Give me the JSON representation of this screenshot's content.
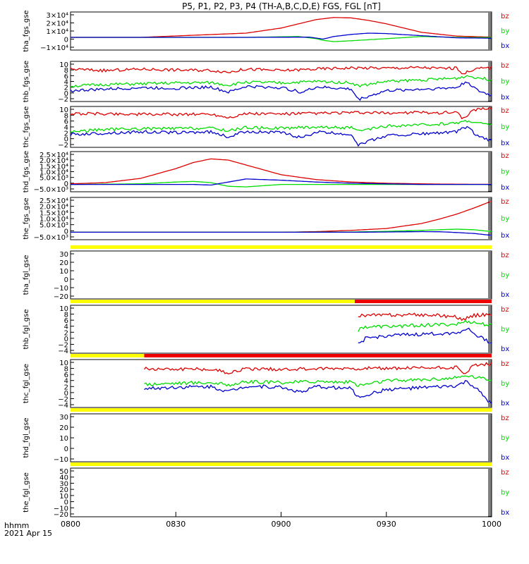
{
  "title": "P5, P1, P2, P3, P4 (TH-A,B,C,D,E) FGS, FGL [nT]",
  "x_axis": {
    "unit_label": "hhmm",
    "date_label": "2021 Apr 15",
    "ticks": [
      "0800",
      "0830",
      "0900",
      "0930",
      "1000"
    ],
    "range_minutes": [
      0,
      120
    ]
  },
  "colors": {
    "bz": "#dd0000",
    "by": "#00dd00",
    "bx": "#0000cc",
    "bar_yellow": "#ffff00",
    "bar_red": "#ee0000"
  },
  "chart_data": [
    {
      "type": "line",
      "ylabel": "tha_fgs_gse",
      "yticks": [
        "3×10⁴",
        "2×10⁴",
        "1×10⁴",
        "0",
        "−1×10⁴"
      ],
      "ylim": [
        -15000,
        30000
      ],
      "legend": [
        "bz",
        "by",
        "bx"
      ],
      "series": [
        {
          "name": "bz",
          "x": [
            0,
            20,
            50,
            60,
            65,
            70,
            75,
            80,
            85,
            90,
            95,
            100,
            110,
            120
          ],
          "y": [
            0,
            0,
            5000,
            11000,
            16000,
            21000,
            23500,
            23000,
            20000,
            16000,
            11000,
            6000,
            1500,
            300
          ]
        },
        {
          "name": "by",
          "x": [
            0,
            50,
            65,
            70,
            72,
            75,
            80,
            90,
            100,
            110,
            120
          ],
          "y": [
            0,
            0,
            1000,
            -1500,
            -3500,
            -5000,
            -4000,
            -1500,
            1000,
            0,
            -200
          ]
        },
        {
          "name": "bx",
          "x": [
            0,
            50,
            68,
            72,
            75,
            80,
            85,
            90,
            100,
            110,
            120
          ],
          "y": [
            0,
            0,
            300,
            -2000,
            1000,
            3500,
            5000,
            4500,
            2000,
            -500,
            -1000
          ]
        }
      ]
    },
    {
      "type": "line",
      "ylabel": "thb_fgs_gse",
      "yticks": [
        "10",
        "8",
        "6",
        "4",
        "2",
        "0",
        "−2"
      ],
      "ylim": [
        -2.5,
        10.5
      ],
      "legend": [
        "bz",
        "by",
        "bx"
      ],
      "series": [
        {
          "name": "bz",
          "x": [
            0,
            10,
            20,
            30,
            40,
            45,
            50,
            60,
            70,
            80,
            90,
            100,
            105,
            110,
            112,
            115,
            120
          ],
          "y": [
            8,
            7.5,
            8,
            7.7,
            7.6,
            7,
            8,
            7.5,
            8,
            8.4,
            8.3,
            8.5,
            8.2,
            8.3,
            6.5,
            8,
            8.5
          ]
        },
        {
          "name": "by",
          "x": [
            0,
            10,
            20,
            30,
            40,
            45,
            50,
            60,
            70,
            80,
            82,
            90,
            100,
            110,
            113,
            120
          ],
          "y": [
            2.5,
            3,
            3.2,
            3.5,
            3.6,
            2.8,
            3.8,
            3.5,
            4,
            3.6,
            2.5,
            4,
            4.5,
            5,
            5.8,
            4.5
          ]
        },
        {
          "name": "by_unused",
          "x": [],
          "y": []
        },
        {
          "name": "bx",
          "x": [
            0,
            10,
            20,
            30,
            40,
            45,
            50,
            60,
            66,
            70,
            80,
            82,
            90,
            100,
            110,
            113,
            116,
            120
          ],
          "y": [
            1,
            1.5,
            2,
            1.8,
            2.2,
            0.5,
            2.4,
            2,
            0.5,
            2.2,
            1.5,
            -1.8,
            1,
            1.5,
            2,
            4,
            1,
            -0.5
          ]
        }
      ]
    },
    {
      "type": "line",
      "ylabel": "thc_fgs_gse",
      "yticks": [
        "10",
        "8",
        "6",
        "4",
        "2",
        "0",
        "−2"
      ],
      "ylim": [
        -2.5,
        10.5
      ],
      "legend": [
        "bz",
        "by",
        "bx"
      ],
      "series": [
        {
          "name": "bz",
          "x": [
            0,
            10,
            20,
            30,
            40,
            45,
            50,
            60,
            70,
            80,
            90,
            100,
            105,
            110,
            112,
            115,
            120
          ],
          "y": [
            8.2,
            8.2,
            8,
            8,
            8.1,
            7,
            8.2,
            8.1,
            8.3,
            8.5,
            8.4,
            8.6,
            8.5,
            8.8,
            6.5,
            9.5,
            10
          ]
        },
        {
          "name": "by",
          "x": [
            0,
            10,
            20,
            30,
            40,
            45,
            50,
            60,
            70,
            80,
            82,
            90,
            100,
            110,
            113,
            120
          ],
          "y": [
            2.5,
            3.2,
            3.4,
            3.5,
            3.6,
            2.8,
            3.8,
            3.6,
            4,
            3.7,
            2.6,
            4.2,
            4.6,
            5.2,
            6,
            4.5
          ]
        },
        {
          "name": "bx_placeholder",
          "x": [],
          "y": []
        },
        {
          "name": "bx",
          "x": [
            0,
            10,
            20,
            30,
            40,
            45,
            50,
            60,
            66,
            70,
            80,
            82,
            90,
            100,
            110,
            113,
            116,
            120
          ],
          "y": [
            1.6,
            2,
            2.4,
            2.2,
            2.4,
            0.8,
            2.6,
            2.2,
            0.5,
            2.4,
            1.6,
            -1.6,
            1.2,
            1.8,
            2.4,
            4.2,
            1,
            -0.5
          ]
        }
      ]
    },
    {
      "type": "line",
      "ylabel": "thd_fgs_gse",
      "yticks": [
        "2.5×10⁴",
        "2.0×10⁴",
        "1.5×10⁴",
        "1.0×10⁴",
        "5.0×10³",
        "0",
        "−5.0×10³"
      ],
      "ylim": [
        -6000,
        27000
      ],
      "legend": [
        "bz",
        "by",
        "bx"
      ],
      "series": [
        {
          "name": "bz",
          "x": [
            0,
            10,
            20,
            30,
            35,
            40,
            45,
            50,
            55,
            60,
            70,
            80,
            90,
            100,
            110,
            120
          ],
          "y": [
            500,
            1500,
            5000,
            13000,
            18000,
            21000,
            20000,
            16000,
            12000,
            8000,
            4000,
            2000,
            1000,
            500,
            200,
            100
          ]
        },
        {
          "name": "by",
          "x": [
            0,
            20,
            30,
            35,
            40,
            45,
            50,
            55,
            60,
            70,
            80,
            90,
            100,
            110,
            120
          ],
          "y": [
            0,
            500,
            2000,
            2500,
            1500,
            -1500,
            -2000,
            -1000,
            0,
            0,
            0,
            0,
            0,
            0,
            0
          ]
        },
        {
          "name": "bx_placeholder",
          "x": [],
          "y": []
        },
        {
          "name": "bx",
          "x": [
            0,
            20,
            30,
            35,
            40,
            45,
            50,
            55,
            60,
            70,
            80,
            90,
            100,
            110,
            120
          ],
          "y": [
            0,
            0,
            0,
            0,
            -500,
            2000,
            4500,
            4000,
            3500,
            2000,
            1000,
            500,
            0,
            0,
            0
          ]
        }
      ]
    },
    {
      "type": "line",
      "ylabel": "the_fgs_gse",
      "yticks": [
        "2.5×10⁴",
        "2.0×10⁴",
        "1.5×10⁴",
        "1.0×10⁴",
        "5.0×10³",
        "0",
        "−5.0×10³"
      ],
      "ylim": [
        -6000,
        28000
      ],
      "legend": [
        "bz",
        "by",
        "bx"
      ],
      "series": [
        {
          "name": "bz",
          "x": [
            0,
            20,
            40,
            60,
            70,
            80,
            90,
            95,
            100,
            105,
            110,
            115,
            120
          ],
          "y": [
            0,
            0,
            0,
            0,
            500,
            1500,
            3000,
            5000,
            7000,
            10500,
            14500,
            19500,
            25000
          ]
        },
        {
          "name": "by",
          "x": [
            0,
            60,
            80,
            90,
            100,
            105,
            110,
            115,
            120
          ],
          "y": [
            0,
            0,
            200,
            700,
            1500,
            2000,
            2500,
            2000,
            500
          ]
        },
        {
          "name": "bx_placeholder",
          "x": [],
          "y": []
        },
        {
          "name": "bx",
          "x": [
            0,
            60,
            80,
            90,
            100,
            105,
            110,
            115,
            120
          ],
          "y": [
            0,
            0,
            0,
            200,
            500,
            400,
            -200,
            -1000,
            -2500
          ]
        }
      ]
    },
    {
      "type": "line",
      "ylabel": "tha_fgl_gse",
      "yticks": [
        "30",
        "20",
        "10",
        "0",
        "−10",
        "−20"
      ],
      "ylim": [
        -25,
        35
      ],
      "legend": [
        "bz",
        "by",
        "bx"
      ],
      "bar_segments": [
        {
          "color": "bar_yellow",
          "from": 0,
          "to": 120
        }
      ],
      "series": []
    },
    {
      "type": "line",
      "ylabel": "thb_fgl_gse",
      "yticks": [
        "10",
        "8",
        "6",
        "4",
        "2",
        "0",
        "−2",
        "−4"
      ],
      "ylim": [
        -5,
        11.5
      ],
      "legend": [
        "bz",
        "by",
        "bx"
      ],
      "bar_segments": [
        {
          "color": "bar_yellow",
          "from": 0,
          "to": 81
        },
        {
          "color": "bar_red",
          "from": 81,
          "to": 120
        }
      ],
      "series": [
        {
          "name": "bz",
          "x": [
            82,
            90,
            100,
            105,
            110,
            112,
            115,
            120
          ],
          "y": [
            8,
            8.1,
            8.2,
            8,
            7.5,
            6.5,
            8,
            8.5
          ]
        },
        {
          "name": "by",
          "x": [
            82,
            83,
            90,
            100,
            110,
            113,
            120
          ],
          "y": [
            2.5,
            4,
            4.2,
            4.6,
            5,
            6,
            4.5
          ]
        },
        {
          "name": "bx_placeholder",
          "x": [],
          "y": []
        },
        {
          "name": "bx",
          "x": [
            82,
            84,
            90,
            100,
            110,
            113,
            116,
            120
          ],
          "y": [
            -2,
            0,
            1,
            1.5,
            2,
            3.5,
            1,
            -1.5
          ]
        }
      ]
    },
    {
      "type": "line",
      "ylabel": "thc_fgl_gse",
      "yticks": [
        "10",
        "8",
        "6",
        "4",
        "2",
        "0",
        "−2",
        "−4"
      ],
      "ylim": [
        -5,
        11.5
      ],
      "legend": [
        "bz",
        "by",
        "bx"
      ],
      "bar_segments": [
        {
          "color": "bar_yellow",
          "from": 0,
          "to": 21
        },
        {
          "color": "bar_red",
          "from": 21,
          "to": 120
        }
      ],
      "series": [
        {
          "name": "bz",
          "x": [
            21,
            30,
            40,
            45,
            50,
            60,
            70,
            80,
            90,
            100,
            110,
            112,
            115,
            120
          ],
          "y": [
            8.3,
            8.3,
            8.2,
            7,
            8.3,
            8.2,
            8.3,
            8.5,
            8.4,
            8.6,
            8.8,
            6.5,
            9.5,
            10
          ]
        },
        {
          "name": "by",
          "x": [
            21,
            30,
            40,
            45,
            50,
            60,
            70,
            80,
            82,
            90,
            100,
            110,
            113,
            120
          ],
          "y": [
            3,
            3.4,
            3.6,
            2.8,
            3.8,
            3.6,
            4,
            3.7,
            2.6,
            4.2,
            4.6,
            5.2,
            6,
            4.5
          ]
        },
        {
          "name": "bx_placeholder",
          "x": [],
          "y": []
        },
        {
          "name": "bx",
          "x": [
            21,
            30,
            40,
            45,
            50,
            60,
            66,
            70,
            80,
            82,
            90,
            100,
            110,
            113,
            116,
            120
          ],
          "y": [
            1.5,
            2,
            2.2,
            0.5,
            2.4,
            2,
            0.2,
            2.2,
            1.5,
            -1.5,
            1.2,
            1.8,
            2.4,
            4,
            1,
            -4
          ]
        }
      ]
    },
    {
      "type": "line",
      "ylabel": "thd_fgl_gse",
      "yticks": [
        "30",
        "20",
        "10",
        "0",
        "−10"
      ],
      "ylim": [
        -15,
        35
      ],
      "legend": [
        "bz",
        "by",
        "bx"
      ],
      "bar_segments": [
        {
          "color": "bar_yellow",
          "from": 0,
          "to": 120
        }
      ],
      "series": []
    },
    {
      "type": "line",
      "ylabel": "the_fgl_gse",
      "yticks": [
        "50",
        "40",
        "30",
        "20",
        "10",
        "0",
        "−10",
        "−20"
      ],
      "ylim": [
        -25,
        55
      ],
      "legend": [
        "bz",
        "by",
        "bx"
      ],
      "bar_segments": [
        {
          "color": "bar_yellow",
          "from": 0,
          "to": 120
        }
      ],
      "series": []
    }
  ]
}
